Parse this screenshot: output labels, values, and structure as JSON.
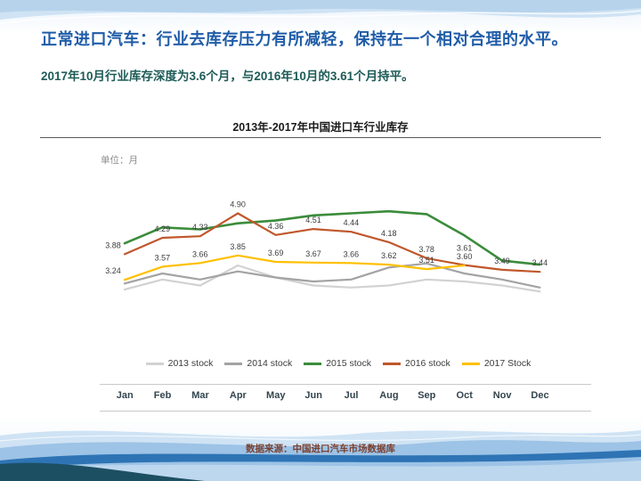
{
  "slide": {
    "title": "正常进口汽车：行业去库存压力有所减轻，保持在一个相对合理的水平。",
    "subtitle": "2017年10月行业库存深度为3.6个月，与2016年10月的3.61个月持平。",
    "footer": "数据来源：中国进口汽车市场数据库"
  },
  "chart": {
    "title": "2013年-2017年中国进口车行业库存",
    "unit_label": "单位：月"
  },
  "colors": {
    "title": "#1f5ca8",
    "subtitle": "#1d5b57",
    "footer": "#7b4131"
  },
  "chart_data": {
    "type": "line",
    "x": [
      "Jan",
      "Feb",
      "Mar",
      "Apr",
      "May",
      "Jun",
      "Jul",
      "Aug",
      "Sep",
      "Oct",
      "Nov",
      "Dec"
    ],
    "series": [
      {
        "name": "2013 stock",
        "color": "#d2d2d2",
        "labeled": false,
        "values": [
          3.0,
          3.25,
          3.1,
          3.6,
          3.3,
          3.1,
          3.05,
          3.1,
          3.25,
          3.2,
          3.1,
          2.95
        ]
      },
      {
        "name": "2014 stock",
        "color": "#a3a3a3",
        "labeled": false,
        "values": [
          3.15,
          3.4,
          3.25,
          3.45,
          3.3,
          3.2,
          3.25,
          3.55,
          3.65,
          3.4,
          3.25,
          3.05
        ]
      },
      {
        "name": "2015 stock",
        "color": "#3b8c3b",
        "labeled": false,
        "values": [
          4.15,
          4.55,
          4.5,
          4.65,
          4.72,
          4.85,
          4.9,
          4.95,
          4.88,
          4.35,
          3.72,
          3.62
        ]
      },
      {
        "name": "2016 stock",
        "color": "#c0572b",
        "labeled": true,
        "values": [
          3.88,
          4.29,
          4.33,
          4.9,
          4.36,
          4.51,
          4.44,
          4.18,
          3.78,
          3.61,
          3.49,
          3.44
        ]
      },
      {
        "name": "2017 Stock",
        "color": "#ffc000",
        "labeled": true,
        "values": [
          3.24,
          3.57,
          3.66,
          3.85,
          3.69,
          3.67,
          3.66,
          3.62,
          3.51,
          3.6
        ]
      }
    ],
    "ylim": [
      2.6,
      5.3
    ],
    "grid": false,
    "legend_position": "bottom",
    "note_unlabeled_series_estimated": true
  }
}
